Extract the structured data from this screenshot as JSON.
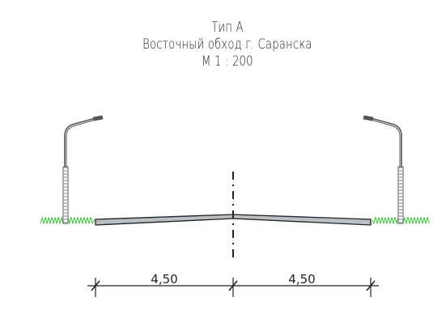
{
  "title": {
    "type_label": "Тип А",
    "project_name": "Восточный обход г. Саранска",
    "scale": "М 1 : 200"
  },
  "dimensions": {
    "left_width": "4,50",
    "right_width": "4,50"
  },
  "colors": {
    "ink": "#222222",
    "pavement_fill": "#b9bfc2",
    "grass": "#3cc43c",
    "lamp": "#555555"
  }
}
